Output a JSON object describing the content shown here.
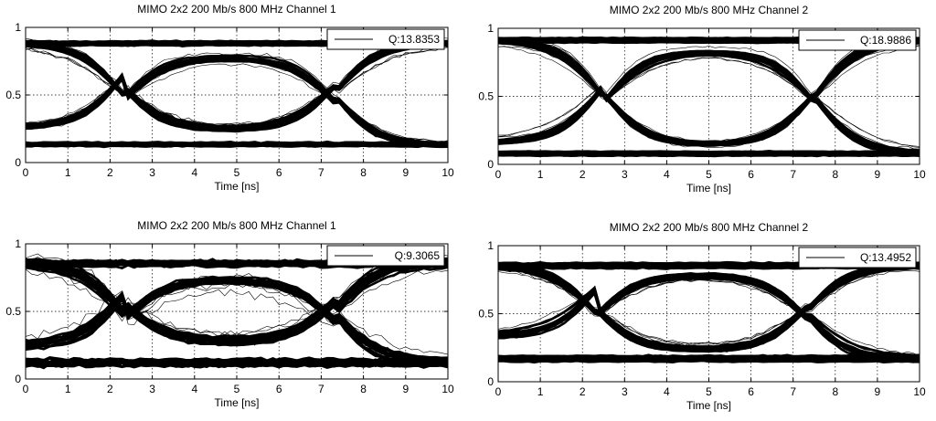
{
  "chart_data": [
    {
      "type": "line",
      "subtype": "eye-diagram",
      "title": "MIMO 2x2 200 Mb/s 800 MHz Channel 1",
      "xlabel": "Time [ns]",
      "ylabel": "",
      "xlim": [
        0,
        10
      ],
      "ylim": [
        0,
        1
      ],
      "xticks": [
        0,
        1,
        2,
        3,
        4,
        5,
        6,
        7,
        8,
        9,
        10
      ],
      "yticks": [
        0,
        0.5,
        1
      ],
      "ytick_labels": [
        "0",
        "0.5",
        "1"
      ],
      "grid": true,
      "legend_label": "Q:13.8353",
      "legend_position": "top-right",
      "high_level": 0.88,
      "low_level": 0.13,
      "crossings": [
        2.3,
        7.3
      ],
      "eye_center": 4.8,
      "eye_top": 0.78,
      "eye_bottom": 0.24,
      "trace_spread": 0.03,
      "noise": 0.02
    },
    {
      "type": "line",
      "subtype": "eye-diagram",
      "title": "MIMO 2x2 200 Mb/s 800 MHz Channel 2",
      "xlabel": "Time [ns]",
      "ylabel": "",
      "xlim": [
        0,
        10
      ],
      "ylim": [
        0,
        1
      ],
      "xticks": [
        0,
        1,
        2,
        3,
        4,
        5,
        6,
        7,
        8,
        9,
        10
      ],
      "yticks": [
        0,
        0.5,
        1
      ],
      "ytick_labels": [
        "0",
        "0.5",
        "1"
      ],
      "grid": true,
      "legend_label": "Q:18.9886",
      "legend_position": "top-right",
      "high_level": 0.91,
      "low_level": 0.08,
      "crossings": [
        2.5,
        7.5
      ],
      "eye_center": 5.0,
      "eye_top": 0.83,
      "eye_bottom": 0.14,
      "trace_spread": 0.025,
      "noise": 0.012
    },
    {
      "type": "line",
      "subtype": "eye-diagram",
      "title": "MIMO 2x2 200 Mb/s 800 MHz Channel 1",
      "xlabel": "Time [ns]",
      "ylabel": "",
      "xlim": [
        0,
        10
      ],
      "ylim": [
        0,
        1
      ],
      "xticks": [
        0,
        1,
        2,
        3,
        4,
        5,
        6,
        7,
        8,
        9,
        10
      ],
      "yticks": [
        0,
        0.5,
        1
      ],
      "ytick_labels": [
        "0",
        "0.5",
        "1"
      ],
      "grid": true,
      "legend_label": "Q:9.3065",
      "legend_position": "top-right",
      "high_level": 0.86,
      "low_level": 0.12,
      "crossings": [
        2.3,
        7.3
      ],
      "eye_center": 5.0,
      "eye_top": 0.73,
      "eye_bottom": 0.27,
      "trace_spread": 0.05,
      "noise": 0.045
    },
    {
      "type": "line",
      "subtype": "eye-diagram",
      "title": "MIMO 2x2 200 Mb/s 800 MHz Channel 2",
      "xlabel": "Time [ns]",
      "ylabel": "",
      "xlim": [
        0,
        10
      ],
      "ylim": [
        0,
        1
      ],
      "xticks": [
        0,
        1,
        2,
        3,
        4,
        5,
        6,
        7,
        8,
        9,
        10
      ],
      "yticks": [
        0,
        0.5,
        1
      ],
      "ytick_labels": [
        "0",
        "0.5",
        "1"
      ],
      "grid": true,
      "legend_label": "Q:13.4952",
      "legend_position": "top-right",
      "high_level": 0.85,
      "low_level": 0.17,
      "crossings": [
        2.3,
        7.3
      ],
      "eye_center": 5.0,
      "eye_top": 0.79,
      "eye_bottom": 0.23,
      "trace_spread": 0.03,
      "noise": 0.02
    }
  ]
}
